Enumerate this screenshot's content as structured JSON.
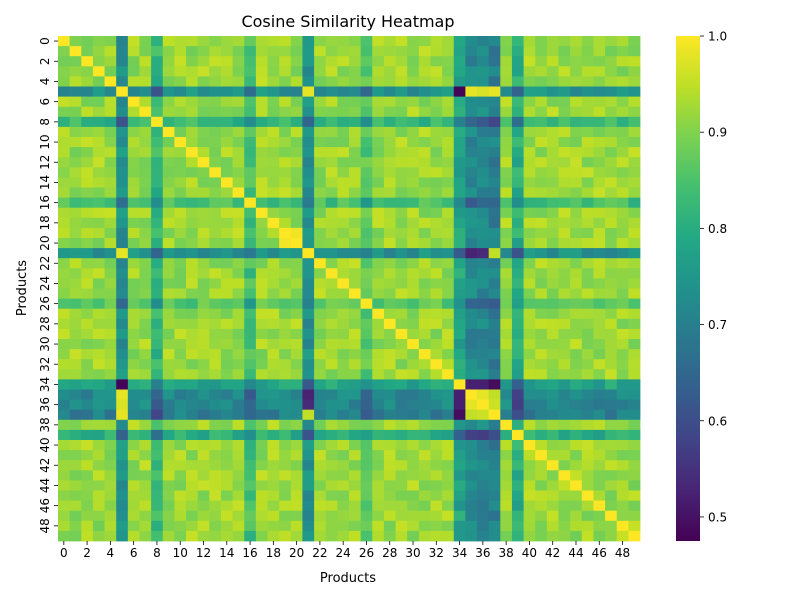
{
  "chart_data": {
    "type": "heatmap",
    "title": "Cosine Similarity Heatmap",
    "xlabel": "Products",
    "ylabel": "Products",
    "n": 50,
    "x_tick_labels": [
      "0",
      "2",
      "4",
      "6",
      "8",
      "10",
      "12",
      "14",
      "16",
      "18",
      "20",
      "22",
      "24",
      "26",
      "28",
      "30",
      "32",
      "34",
      "36",
      "38",
      "40",
      "42",
      "44",
      "46",
      "48"
    ],
    "y_tick_labels": [
      "0",
      "2",
      "4",
      "6",
      "8",
      "10",
      "12",
      "14",
      "16",
      "18",
      "20",
      "22",
      "24",
      "26",
      "28",
      "30",
      "32",
      "34",
      "36",
      "38",
      "40",
      "42",
      "44",
      "46",
      "48"
    ],
    "colormap": "viridis",
    "colorbar": {
      "range": [
        0.475,
        1.0
      ],
      "ticks": [
        "0.5",
        "0.6",
        "0.7",
        "0.8",
        "0.9",
        "1.0"
      ]
    },
    "diagonal_value": 1.0,
    "baseline_similarity": 0.92,
    "outlier_products": [
      {
        "index": 5,
        "similarity_to_others": 0.74
      },
      {
        "index": 21,
        "similarity_to_others": 0.74
      },
      {
        "index": 34,
        "similarity_to_others": 0.78
      },
      {
        "index": 35,
        "similarity_to_others": 0.72
      },
      {
        "index": 36,
        "similarity_to_others": 0.72
      },
      {
        "index": 37,
        "similarity_to_others": 0.7
      },
      {
        "index": 8,
        "similarity_to_others": 0.82
      },
      {
        "index": 16,
        "similarity_to_others": 0.84
      },
      {
        "index": 39,
        "similarity_to_others": 0.8
      },
      {
        "index": 26,
        "similarity_to_others": 0.86
      }
    ],
    "notable_pairs": [
      {
        "i": 5,
        "j": 34,
        "value": 0.48
      },
      {
        "i": 5,
        "j": 21,
        "value": 0.98
      },
      {
        "i": 5,
        "j": 35,
        "value": 0.98
      },
      {
        "i": 5,
        "j": 36,
        "value": 0.97
      },
      {
        "i": 5,
        "j": 37,
        "value": 0.98
      },
      {
        "i": 34,
        "j": 35,
        "value": 0.52
      },
      {
        "i": 34,
        "j": 36,
        "value": 0.52
      },
      {
        "i": 34,
        "j": 37,
        "value": 0.49
      },
      {
        "i": 34,
        "j": 21,
        "value": 0.62
      },
      {
        "i": 35,
        "j": 36,
        "value": 0.98
      },
      {
        "i": 35,
        "j": 37,
        "value": 0.95
      },
      {
        "i": 36,
        "j": 37,
        "value": 0.96
      },
      {
        "i": 19,
        "j": 20,
        "value": 0.99
      },
      {
        "i": 21,
        "j": 37,
        "value": 0.95
      }
    ]
  }
}
